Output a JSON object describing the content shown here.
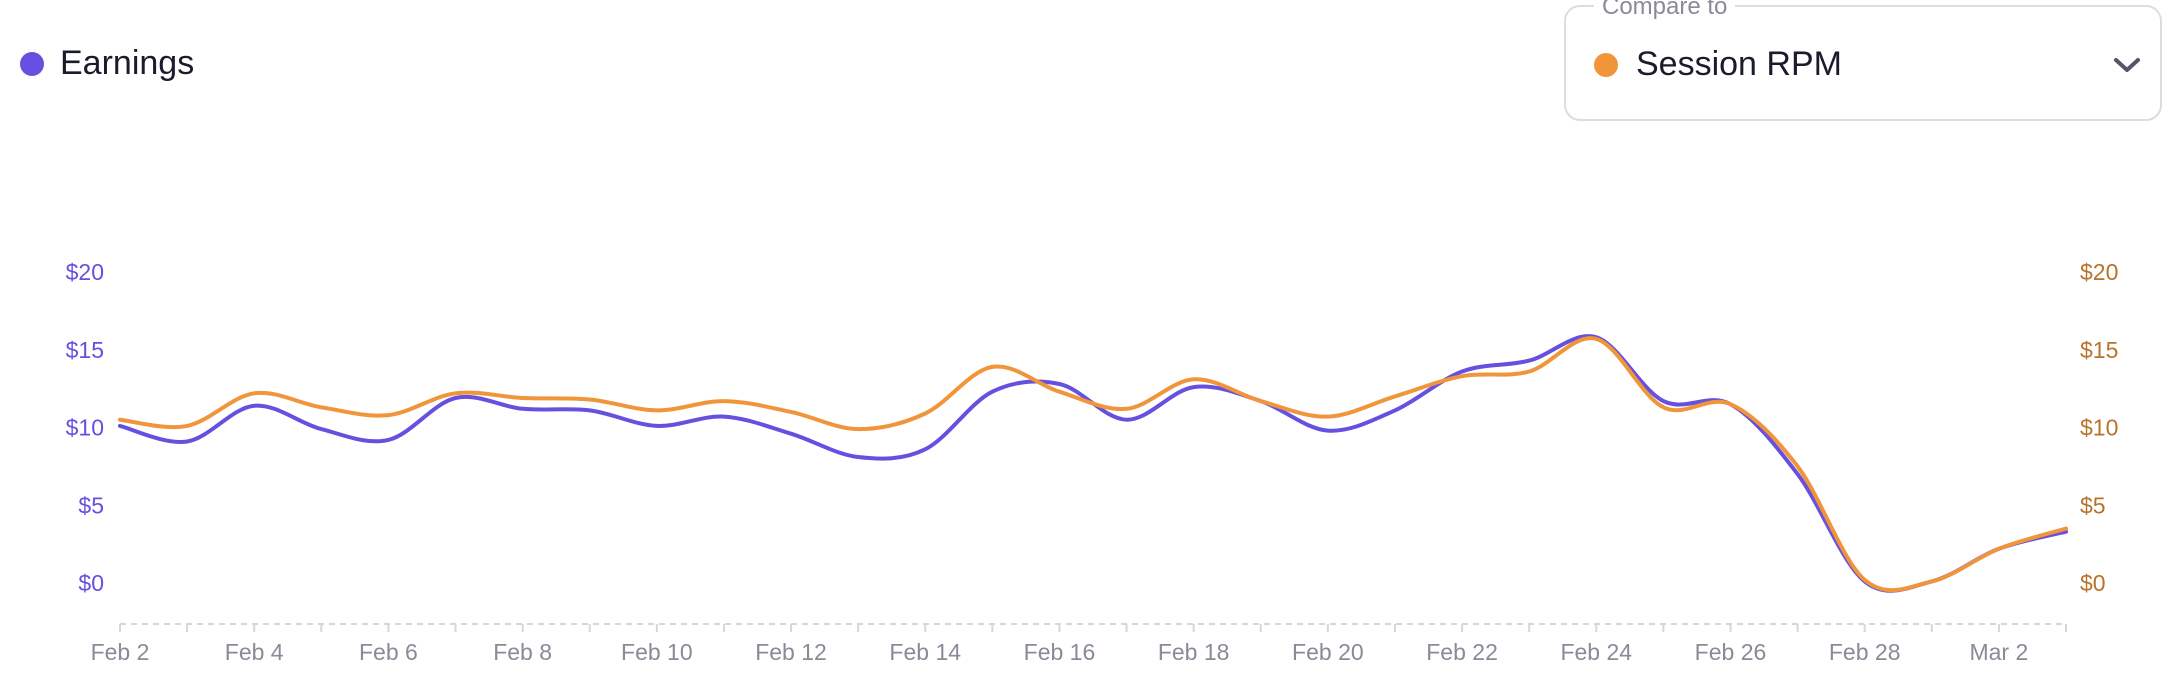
{
  "legend": {
    "label": "Earnings",
    "color": "#6650e0"
  },
  "compare": {
    "title": "Compare to",
    "selected_label": "Session RPM",
    "selected_color": "#f0953a",
    "icon": "chevron-down-icon"
  },
  "chart_data": {
    "type": "line",
    "x_tick_labels": [
      "Feb 2",
      "Feb 4",
      "Feb 6",
      "Feb 8",
      "Feb 10",
      "Feb 12",
      "Feb 14",
      "Feb 16",
      "Feb 18",
      "Feb 20",
      "Feb 22",
      "Feb 24",
      "Feb 26",
      "Feb 28",
      "Mar 2"
    ],
    "x": [
      "Feb 2",
      "Feb 3",
      "Feb 4",
      "Feb 5",
      "Feb 6",
      "Feb 7",
      "Feb 8",
      "Feb 9",
      "Feb 10",
      "Feb 11",
      "Feb 12",
      "Feb 13",
      "Feb 14",
      "Feb 15",
      "Feb 16",
      "Feb 17",
      "Feb 18",
      "Feb 19",
      "Feb 20",
      "Feb 21",
      "Feb 22",
      "Feb 23",
      "Feb 24",
      "Feb 25",
      "Feb 26",
      "Feb 27",
      "Feb 28",
      "Mar 1",
      "Mar 2",
      "Mar 3"
    ],
    "series": [
      {
        "name": "Earnings",
        "axis": "left",
        "color": "#6650e0",
        "values": [
          10.1,
          9.1,
          11.4,
          9.9,
          9.2,
          11.9,
          11.2,
          11.1,
          10.1,
          10.7,
          9.6,
          8.1,
          8.6,
          12.3,
          12.8,
          10.5,
          12.6,
          11.7,
          9.8,
          11.1,
          13.6,
          14.3,
          15.8,
          11.7,
          11.5,
          7.0,
          0.1,
          0.1,
          2.2,
          3.3
        ]
      },
      {
        "name": "Session RPM",
        "axis": "right",
        "color": "#f0953a",
        "values": [
          10.5,
          10.1,
          12.2,
          11.3,
          10.8,
          12.2,
          11.9,
          11.8,
          11.1,
          11.7,
          11.0,
          9.9,
          10.9,
          13.9,
          12.3,
          11.2,
          13.1,
          11.7,
          10.7,
          12.0,
          13.3,
          13.6,
          15.7,
          11.3,
          11.5,
          7.5,
          0.2,
          0.1,
          2.2,
          3.5
        ]
      }
    ],
    "y_left": {
      "ticks": [
        "$0",
        "$5",
        "$10",
        "$15",
        "$20"
      ],
      "ylim": [
        0,
        20
      ],
      "color": "#6650e0"
    },
    "y_right": {
      "ticks": [
        "$0",
        "$5",
        "$10",
        "$15",
        "$20"
      ],
      "ylim": [
        0,
        20
      ],
      "color": "#b8732a"
    },
    "grid": false
  }
}
